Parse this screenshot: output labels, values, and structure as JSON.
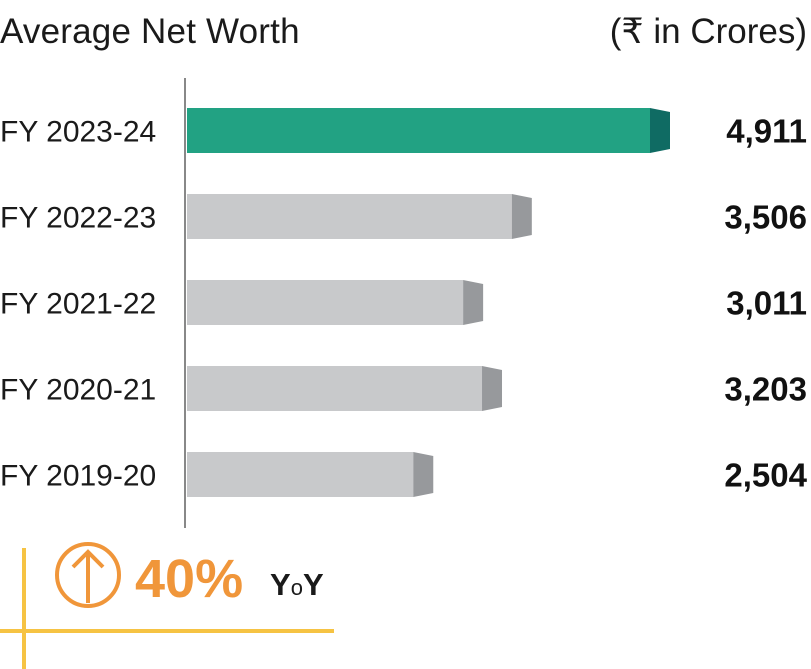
{
  "chart_data": {
    "type": "bar",
    "orientation": "horizontal",
    "title": "Average Net Worth",
    "unit_label": "(₹ in Crores)",
    "categories": [
      "FY 2023-24",
      "FY 2022-23",
      "FY 2021-22",
      "FY 2020-21",
      "FY 2019-20"
    ],
    "values": [
      4911,
      3506,
      3011,
      3203,
      2504
    ],
    "value_labels": [
      "4,911",
      "3,506",
      "3,011",
      "3,203",
      "2,504"
    ],
    "highlight_index": 0,
    "colors": {
      "highlight": "#22a283",
      "highlight_end": "#0f6b63",
      "other": "#c8c9cb",
      "other_end": "#97999c"
    },
    "xlim": [
      0,
      4911
    ],
    "grid": false,
    "legend": "none"
  },
  "callout": {
    "value": "40%",
    "suffix_big_1": "Y",
    "suffix_small": "o",
    "suffix_big_2": "Y",
    "icon": "up-arrow-circle-icon",
    "color": "#f0963a",
    "accent_line_color": "#f6c343"
  }
}
